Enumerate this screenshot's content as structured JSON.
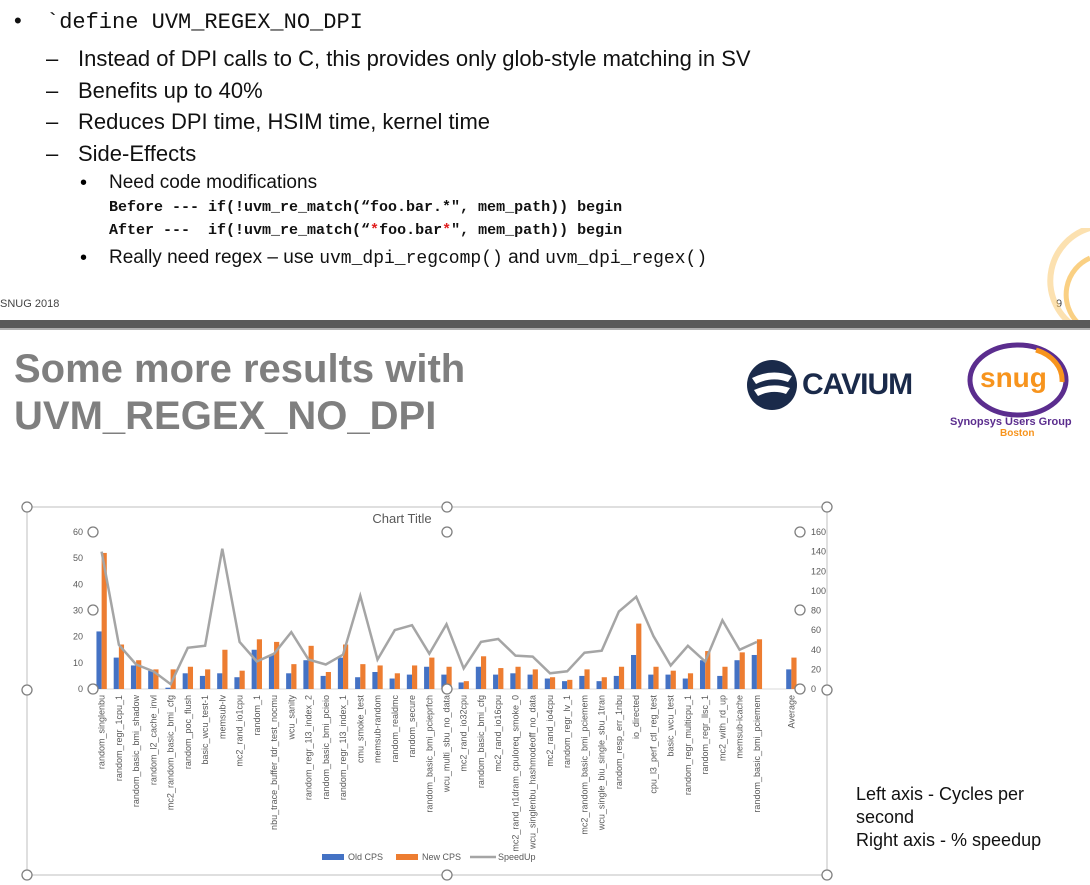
{
  "slide1": {
    "bullet_main_marker": "•",
    "bullet_main": "`define UVM_REGEX_NO_DPI",
    "dash": "–",
    "sub_items": [
      "Instead of DPI calls to C, this provides only glob-style matching in SV",
      "Benefits up to 40%",
      "Reduces DPI time, HSIM time, kernel time",
      "Side-Effects"
    ],
    "dot": "•",
    "subsub_1": "Need code modifications",
    "code_before_a": "Before --- if(!uvm_re_match(“foo.bar.*\", mem_path)) begin",
    "code_after_a": "After ---  if(!uvm_re_match(“",
    "code_after_star1": "*",
    "code_after_b": "foo.bar",
    "code_after_star2": "*",
    "code_after_c": "\", mem_path)) begin",
    "subsub_2_a": "Really need regex – use ",
    "subsub_2_code1": "uvm_dpi_regcomp()",
    "subsub_2_b": " and ",
    "subsub_2_code2": "uvm_dpi_regex()",
    "footer_left": "SNUG 2018",
    "page_number": "9"
  },
  "slide2": {
    "title_line1": "Some more results with",
    "title_line2": "UVM_REGEX_NO_DPI",
    "cavium_text": "CAVIUM",
    "snug_text": "snug",
    "snug_sub1": "Synopsys Users Group",
    "snug_sub2": "Boston",
    "note_line1": "Left axis - Cycles per",
    "note_line2": "second",
    "note_line3": "Right axis - % speedup"
  },
  "colors": {
    "old": "#4472c4",
    "new": "#ed7d31",
    "speedup": "#a5a5a5",
    "snug_purple": "#5b2d8e",
    "snug_orange": "#f7941d"
  },
  "chart_data": {
    "type": "bar",
    "title": "Chart Title",
    "categories": [
      "random_singlenbu",
      "random_regr_1cpu_1",
      "random_basic_bmi_shadow",
      "random_l2_cache_invl",
      "mc2_random_basic_bmi_cfg",
      "random_poc_flush",
      "basic_wcu_test-1",
      "memsub-lv",
      "mc2_rand_io1cpu",
      "random_1",
      "nbu_trace_buffer_tdr_test_nocmu",
      "wcu_sanity",
      "random_regr_1l3_index_2",
      "random_basic_bmi_pcieio",
      "random_regr_1l3_index_1",
      "cmu_smoke_test",
      "memsub-random",
      "random_realdmc",
      "random_secure",
      "random_basic_bmi_pcieprfch",
      "wcu_multi_sbu_no_data",
      "mc2_rand_io32cpu",
      "random_basic_bmi_cfg",
      "mc2_rand_io16cpu",
      "mc2_rand_n1dram_cpuloreq_smoke_0",
      "wcu_singlenbu_hashmodeoff_no_data",
      "mc2_rand_io4cpu",
      "random_regr_lv_1",
      "mc2_random_basic_bmi_pciemem",
      "wcu_single_biu_single_sbu_1tran",
      "random_resp_err_1nbu",
      "io_directed",
      "cpu_l3_perf_ctl_reg_test",
      "basic_wcu_test",
      "random_regr_multicpu_1",
      "random_regr_llsc_1",
      "mc2_with_rd_up",
      "memsub-icache",
      "random_basic_bmi_pciemem",
      "",
      "Average"
    ],
    "series": [
      {
        "name": "Old CPS",
        "axis": "left",
        "values": [
          22,
          12,
          9,
          7,
          0.5,
          6,
          5,
          6,
          4.5,
          15,
          13,
          6,
          11,
          5,
          12,
          4.5,
          6.5,
          4,
          5.5,
          8.5,
          5.5,
          2.5,
          8.5,
          5.5,
          6,
          5.5,
          4,
          3,
          5,
          3,
          5,
          13,
          5.5,
          5.5,
          4,
          11,
          5,
          11,
          13,
          null,
          7.5
        ]
      },
      {
        "name": "New CPS",
        "axis": "left",
        "values": [
          52,
          17,
          11,
          7.5,
          7.5,
          8.5,
          7.5,
          15,
          7,
          19,
          18,
          9.5,
          16.5,
          6.5,
          17,
          9.5,
          9,
          6,
          9,
          12,
          8.5,
          3,
          12.5,
          8,
          8.5,
          7.5,
          4.5,
          3.5,
          7.5,
          4.5,
          8.5,
          25,
          8.5,
          7,
          6,
          14.5,
          8.5,
          14,
          19,
          null,
          12
        ]
      },
      {
        "name": "SpeedUp",
        "axis": "right",
        "values": [
          140,
          45,
          25,
          18,
          5,
          42,
          44,
          143,
          48,
          28,
          36,
          58,
          30,
          25,
          35,
          95,
          30,
          60,
          65,
          36,
          66,
          21,
          48,
          51,
          34,
          33,
          16,
          18,
          37,
          39,
          79,
          94,
          54,
          24,
          44,
          28,
          70,
          40,
          48,
          null,
          null
        ]
      }
    ],
    "left_ylim": [
      0,
      60
    ],
    "left_ticks": [
      0,
      10,
      20,
      30,
      40,
      50,
      60
    ],
    "right_ylim": [
      0,
      160
    ],
    "right_ticks": [
      0,
      20,
      40,
      60,
      80,
      100,
      120,
      140,
      160
    ],
    "legend": "bottom",
    "grid": false
  }
}
